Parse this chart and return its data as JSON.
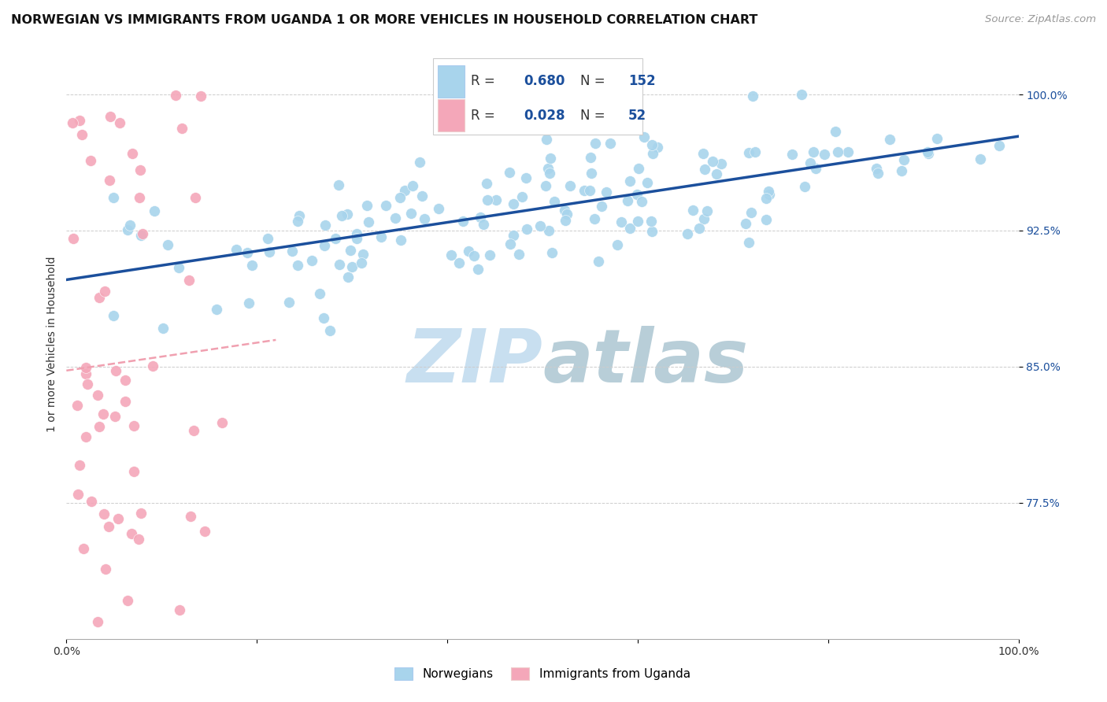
{
  "title": "NORWEGIAN VS IMMIGRANTS FROM UGANDA 1 OR MORE VEHICLES IN HOUSEHOLD CORRELATION CHART",
  "source": "Source: ZipAtlas.com",
  "ylabel": "1 or more Vehicles in Household",
  "xlim": [
    0.0,
    1.0
  ],
  "ylim": [
    0.7,
    1.025
  ],
  "yticks": [
    0.775,
    0.85,
    0.925,
    1.0
  ],
  "ytick_labels": [
    "77.5%",
    "85.0%",
    "92.5%",
    "100.0%"
  ],
  "norwegian_R": 0.68,
  "norwegian_N": 152,
  "ugandan_R": 0.028,
  "ugandan_N": 52,
  "blue_color": "#A8D4EC",
  "pink_color": "#F4A7B9",
  "blue_line_color": "#1B4F9C",
  "pink_line_color": "#E8607A",
  "pink_dashed_color": "#F0A0B0",
  "watermark_color": "#C8DFF0",
  "title_fontsize": 11.5,
  "source_fontsize": 9.5,
  "legend_fontsize": 13,
  "axis_label_fontsize": 10,
  "ytick_fontsize": 10,
  "dot_size": 100
}
